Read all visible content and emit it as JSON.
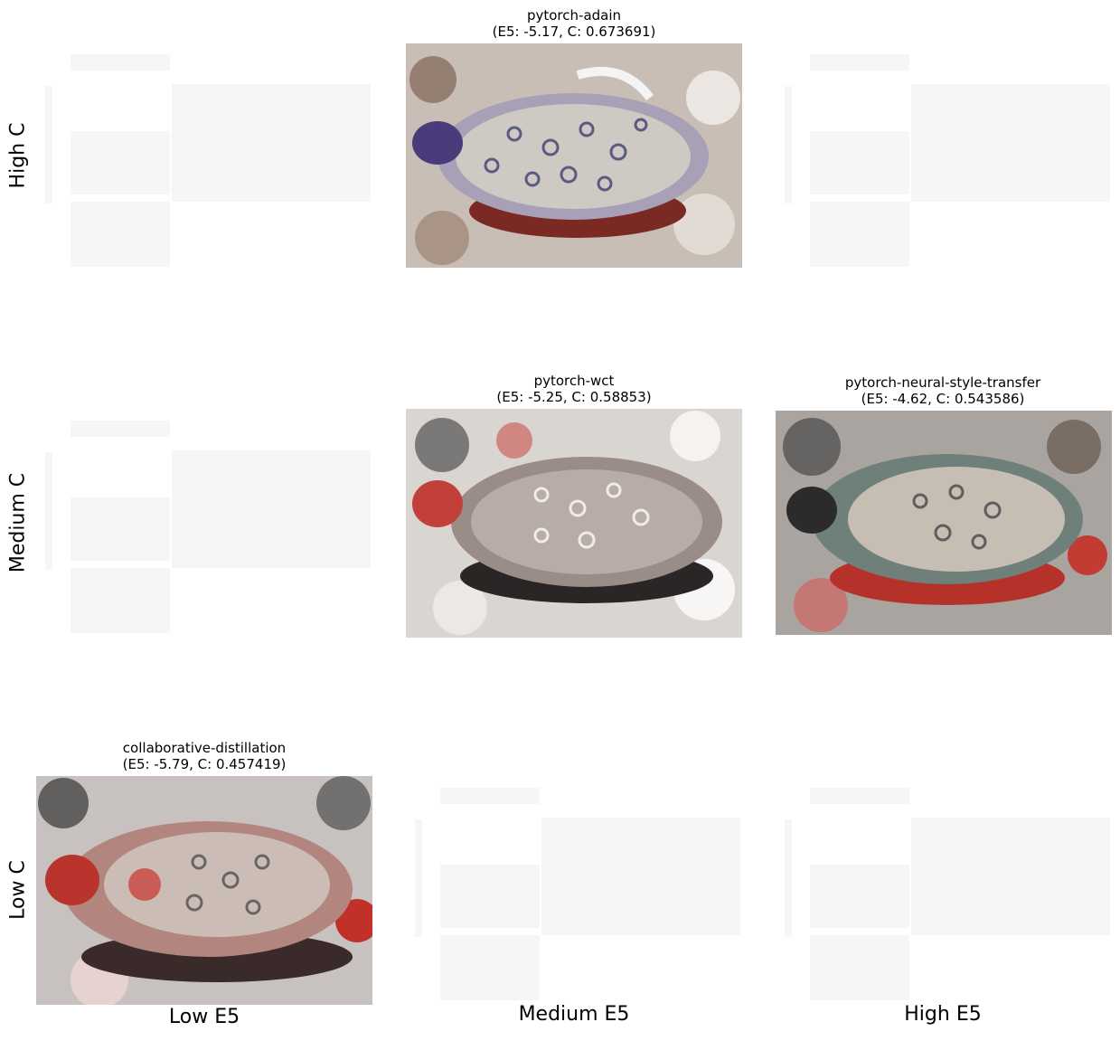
{
  "rows": [
    "High C",
    "Medium C",
    "Low C"
  ],
  "columns": [
    "Low E5",
    "Medium E5",
    "High E5"
  ],
  "cells": {
    "high_medium": {
      "method": "pytorch-adain",
      "scores": "(E5: -5.17, C: 0.673691)"
    },
    "medium_medium": {
      "method": "pytorch-wct",
      "scores": "(E5: -5.25, C: 0.58853)"
    },
    "medium_high": {
      "method": "pytorch-neural-style-transfer",
      "scores": "(E5: -4.62, C: 0.543586)"
    },
    "low_low": {
      "method": "collaborative-distillation",
      "scores": "(E5: -5.79, C: 0.457419)"
    }
  },
  "colors": {
    "background": "#ffffff",
    "placeholder": "#f6f6f6"
  }
}
